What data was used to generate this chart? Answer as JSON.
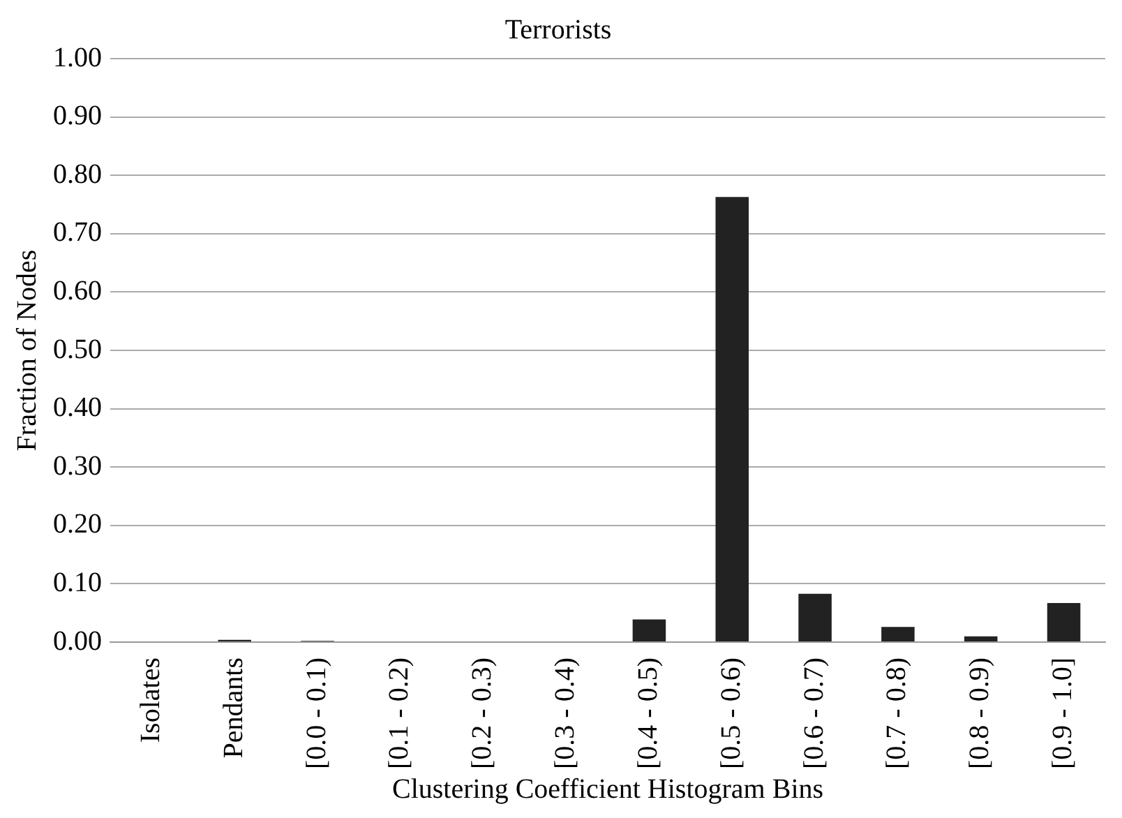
{
  "chart_data": {
    "type": "bar",
    "title": "Terrorists",
    "xlabel": "Clustering Coefficient Histogram Bins",
    "ylabel": "Fraction of Nodes",
    "categories": [
      "Isolates",
      "Pendants",
      "[0.0 - 0.1)",
      "[0.1 - 0.2)",
      "[0.2 - 0.3)",
      "[0.3 - 0.4)",
      "[0.4 - 0.5)",
      "[0.5 - 0.6)",
      "[0.6 - 0.7)",
      "[0.7 - 0.8)",
      "[0.8 - 0.9)",
      "[0.9 - 1.0]"
    ],
    "values": [
      0,
      0.004,
      0.002,
      0,
      0,
      0,
      0.039,
      0.763,
      0.083,
      0.026,
      0.01,
      0.067
    ],
    "color": "#222222",
    "ylim": [
      0,
      1
    ],
    "yticks": [
      {
        "value": 0,
        "label": "0.00"
      },
      {
        "value": 0.1,
        "label": "0.10"
      },
      {
        "value": 0.2,
        "label": "0.20"
      },
      {
        "value": 0.3,
        "label": "0.30"
      },
      {
        "value": 0.4,
        "label": "0.40"
      },
      {
        "value": 0.5,
        "label": "0.50"
      },
      {
        "value": 0.6,
        "label": "0.60"
      },
      {
        "value": 0.7,
        "label": "0.70"
      },
      {
        "value": 0.8,
        "label": "0.80"
      },
      {
        "value": 0.9,
        "label": "0.90"
      },
      {
        "value": 1,
        "label": "1.00"
      }
    ],
    "grid": "y",
    "legend": false
  }
}
